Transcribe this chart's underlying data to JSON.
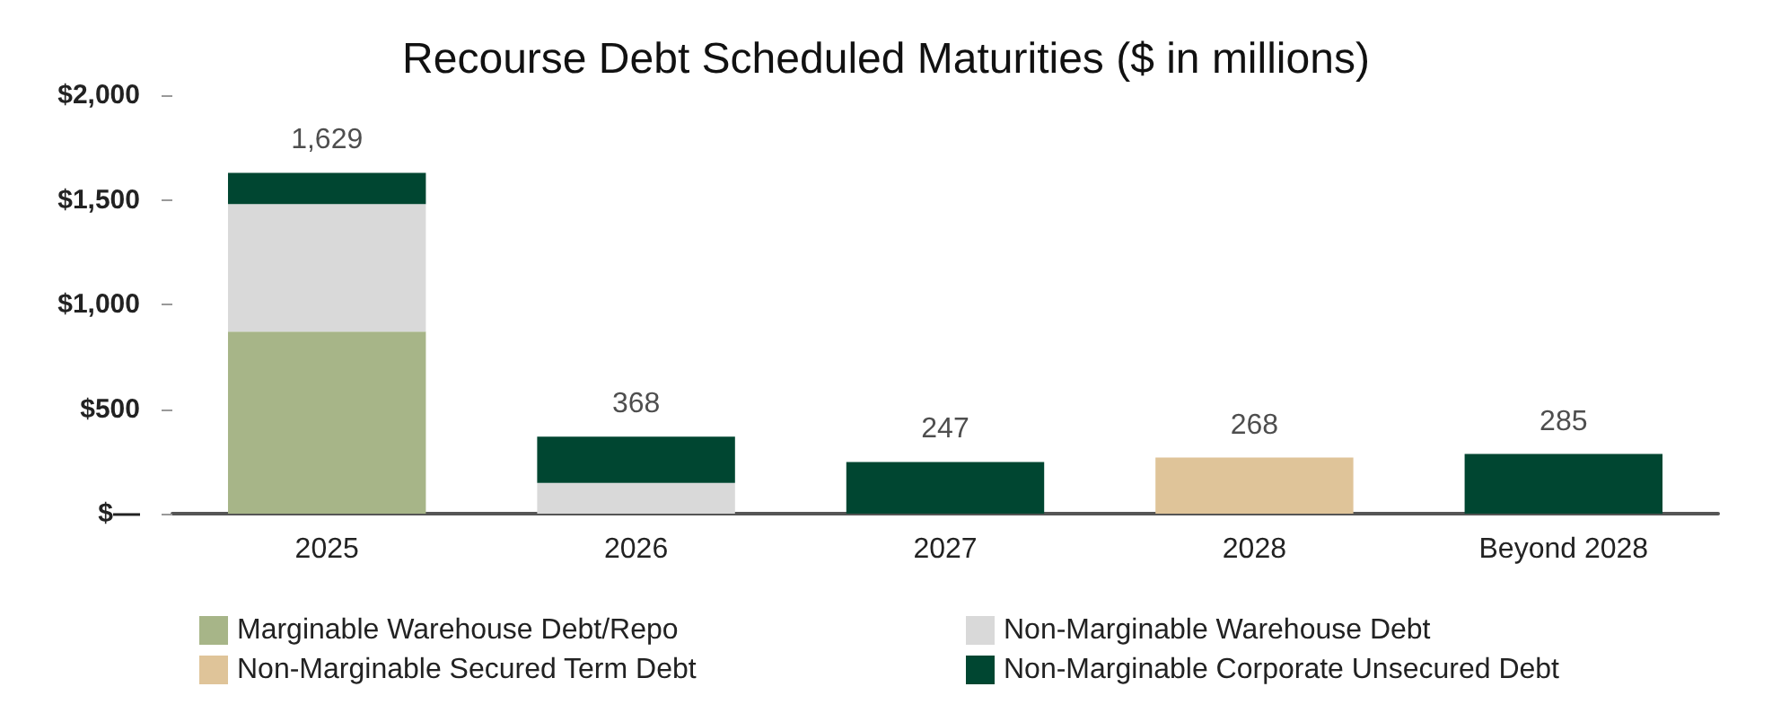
{
  "chart_data": {
    "type": "bar",
    "title": "Recourse Debt Scheduled Maturities ($ in millions)",
    "categories": [
      "2025",
      "2026",
      "2027",
      "2028",
      "Beyond 2028"
    ],
    "stacked": true,
    "series": [
      {
        "name": "Marginable Warehouse Debt/Repo",
        "color": "#a7b588",
        "values": [
          870,
          null,
          null,
          null,
          null
        ]
      },
      {
        "name": "Non-Marginable Warehouse Debt",
        "color": "#d9d9d9",
        "values": [
          610,
          147,
          null,
          null,
          null
        ]
      },
      {
        "name": "Non-Marginable Secured Term Debt",
        "color": "#dfc499",
        "values": [
          null,
          null,
          null,
          268,
          null
        ]
      },
      {
        "name": "Non-Marginable Corporate Unsecured Debt",
        "color": "#004631",
        "values": [
          149,
          221,
          247,
          null,
          285
        ]
      }
    ],
    "totals": [
      "1,629",
      "368",
      "247",
      "268",
      "285"
    ],
    "ylim": [
      0,
      2000
    ],
    "yticks": [
      {
        "value": 0,
        "label": "$—"
      },
      {
        "value": 500,
        "label": "$500"
      },
      {
        "value": 1000,
        "label": "$1,000"
      },
      {
        "value": 1500,
        "label": "$1,500"
      },
      {
        "value": 2000,
        "label": "$2,000"
      }
    ],
    "grid": false,
    "legend": "bottom"
  }
}
